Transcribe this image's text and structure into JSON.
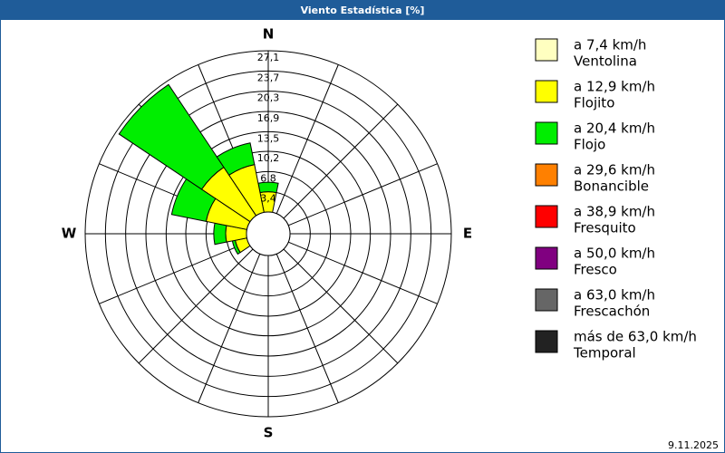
{
  "chart_data": {
    "type": "windrose",
    "title": "Viento Estadística [%]",
    "date": "9.11.2025",
    "categories": [
      "N",
      null,
      null,
      null,
      "E",
      null,
      null,
      null,
      "S",
      null,
      null,
      null,
      "W",
      null,
      null,
      null
    ],
    "rlim": [
      0,
      27.1
    ],
    "rticks": [
      {
        "value": 3.4,
        "label": "3,4"
      },
      {
        "value": 6.8,
        "label": "6,8"
      },
      {
        "value": 10.2,
        "label": "10,2"
      },
      {
        "value": 13.5,
        "label": "13,5"
      },
      {
        "value": 16.9,
        "label": "16,9"
      },
      {
        "value": 20.3,
        "label": "20,3"
      },
      {
        "value": 23.7,
        "label": "23,7"
      },
      {
        "value": 27.1,
        "label": "27,1"
      }
    ],
    "series": [
      {
        "name": "a 7,4 km/h",
        "description": "Ventolina",
        "color": "#ffffc0",
        "values": [
          0,
          0,
          0,
          0,
          0,
          0,
          0,
          0,
          0,
          0,
          0,
          0,
          0,
          0,
          0,
          0
        ]
      },
      {
        "name": "a 12,9 km/h",
        "description": "Flojito",
        "color": "#ffff00",
        "values": [
          3.4,
          0,
          0,
          0,
          0,
          0,
          0,
          0,
          0,
          0,
          0,
          2.0,
          3.5,
          7.0,
          9.8,
          8.2
        ]
      },
      {
        "name": "a 20,4 km/h",
        "description": "Flojo",
        "color": "#00ee00",
        "values": [
          1.6,
          0,
          0,
          0,
          0,
          0,
          0,
          0,
          0,
          0,
          0,
          0.5,
          2.0,
          5.9,
          16.7,
          3.7
        ]
      },
      {
        "name": "a 29,6 km/h",
        "description": "Bonancible",
        "color": "#ff8000",
        "values": [
          0,
          0,
          0,
          0,
          0,
          0,
          0,
          0,
          0,
          0,
          0,
          0,
          0,
          0,
          0,
          0
        ]
      },
      {
        "name": "a 38,9 km/h",
        "description": "Fresquito",
        "color": "#ff0000",
        "values": [
          0,
          0,
          0,
          0,
          0,
          0,
          0,
          0,
          0,
          0,
          0,
          0,
          0,
          0,
          0,
          0
        ]
      },
      {
        "name": "a 50,0 km/h",
        "description": "Fresco",
        "color": "#800080",
        "values": [
          0,
          0,
          0,
          0,
          0,
          0,
          0,
          0,
          0,
          0,
          0,
          0,
          0,
          0,
          0,
          0
        ]
      },
      {
        "name": "a 63,0 km/h",
        "description": "Frescachón",
        "color": "#666666",
        "values": [
          0,
          0,
          0,
          0,
          0,
          0,
          0,
          0,
          0,
          0,
          0,
          0,
          0,
          0,
          0,
          0
        ]
      },
      {
        "name": "más de 63,0 km/h",
        "description": "Temporal",
        "color": "#222222",
        "values": [
          0,
          0,
          0,
          0,
          0,
          0,
          0,
          0,
          0,
          0,
          0,
          0,
          0,
          0,
          0,
          0
        ]
      }
    ]
  }
}
